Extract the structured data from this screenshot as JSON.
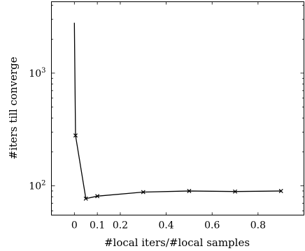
{
  "chart_data": {
    "type": "line",
    "title": "",
    "xlabel": "#local iters/#local samples",
    "ylabel": "#iters till converge",
    "xlim": [
      -0.1,
      1.0
    ],
    "ylim": [
      55,
      4300
    ],
    "yscale": "log",
    "grid": false,
    "legend": "none",
    "x_ticks": [
      0,
      0.1,
      0.2,
      0.4,
      0.6,
      0.8
    ],
    "x_tick_labels": [
      "0",
      "0.1",
      "0.2",
      "0.4",
      "0.6",
      "0.8"
    ],
    "y_major_ticks": [
      100,
      1000
    ],
    "y_tick_labels": [
      "10^2",
      "10^3"
    ],
    "series": [
      {
        "points": [
          {
            "x": 0.0,
            "y": 2800,
            "marker": false
          },
          {
            "x": 0.005,
            "y": 280,
            "marker": true
          },
          {
            "x": 0.05,
            "y": 77,
            "marker": true
          },
          {
            "x": 0.1,
            "y": 81,
            "marker": true
          },
          {
            "x": 0.3,
            "y": 88,
            "marker": true
          },
          {
            "x": 0.5,
            "y": 90,
            "marker": true
          },
          {
            "x": 0.7,
            "y": 89,
            "marker": true
          },
          {
            "x": 0.9,
            "y": 90,
            "marker": true
          }
        ]
      }
    ]
  }
}
